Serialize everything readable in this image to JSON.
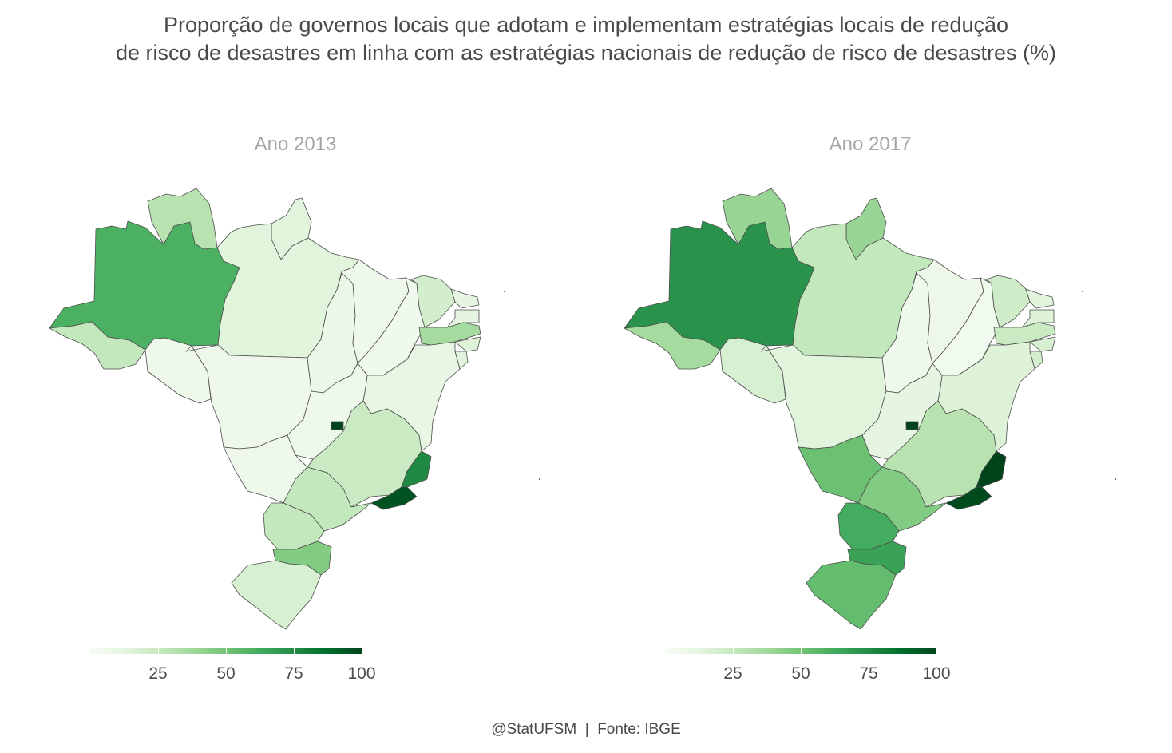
{
  "title_line1": "Proporção de governos locais que adotam e implementam estratégias locais de redução",
  "title_line2": "de risco de desastres em linha com as estratégias nacionais de redução de risco de desastres (%)",
  "footer": "@StatUFSM  |  Fonte: IBGE",
  "legend": {
    "min": 0,
    "max": 100,
    "ticks": [
      "25",
      "50",
      "75",
      "100"
    ],
    "tick_values": [
      25,
      50,
      75,
      100
    ],
    "colors": [
      "#f7fcf5",
      "#e5f5e0",
      "#c7e9c0",
      "#a1d99b",
      "#74c476",
      "#41ab5d",
      "#238b45",
      "#006d2c",
      "#00441b"
    ]
  },
  "maps": [
    {
      "title": "Ano 2013",
      "values": {
        "AM": 60,
        "RR": 30,
        "AP": 14,
        "PA": 14,
        "AC": 26,
        "RO": 6,
        "MT": 6,
        "TO": 8,
        "MA": 6,
        "PI": 5,
        "CE": 20,
        "RN": 12,
        "PB": 12,
        "PE": 36,
        "AL": 16,
        "SE": 14,
        "BA": 10,
        "GO": 6,
        "DF": 100,
        "MS": 6,
        "MG": 24,
        "ES": 76,
        "RJ": 95,
        "SP": 26,
        "PR": 26,
        "SC": 46,
        "RS": 18
      }
    },
    {
      "title": "Ano 2017",
      "values": {
        "AM": 72,
        "RR": 40,
        "AP": 40,
        "PA": 26,
        "AC": 36,
        "RO": 18,
        "MT": 14,
        "TO": 6,
        "MA": 7,
        "PI": 4,
        "CE": 22,
        "RN": 14,
        "PB": 16,
        "PE": 24,
        "AL": 18,
        "SE": 20,
        "BA": 16,
        "GO": 12,
        "DF": 100,
        "MS": 52,
        "MG": 30,
        "ES": 100,
        "RJ": 98,
        "SP": 46,
        "PR": 62,
        "SC": 66,
        "RS": 54
      }
    }
  ]
}
